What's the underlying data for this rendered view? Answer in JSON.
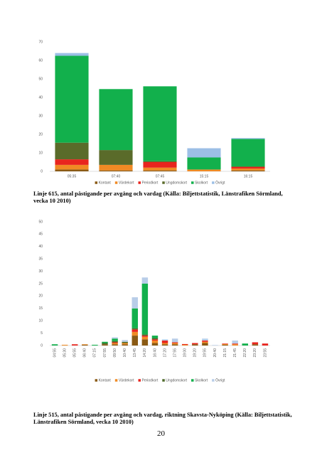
{
  "chart_data": [
    {
      "type": "stacked_bar",
      "categories": [
        "05:35",
        "07:40",
        "07:45",
        "15:15",
        "16:15"
      ],
      "series": [
        {
          "name": "Kontant",
          "color": "#8a5a14",
          "values": [
            1,
            0.5,
            0.5,
            0,
            0.5
          ]
        },
        {
          "name": "Värdekort",
          "color": "#f08a24",
          "values": [
            2.5,
            3,
            1.5,
            1,
            1
          ]
        },
        {
          "name": "Periodkort",
          "color": "#e8251e",
          "values": [
            3,
            0,
            3,
            0,
            1
          ]
        },
        {
          "name": "Ungdomskort",
          "color": "#5a6b2a",
          "values": [
            9,
            8,
            0.5,
            0,
            0
          ]
        },
        {
          "name": "Skolkort",
          "color": "#12b04c",
          "values": [
            47,
            33,
            40.5,
            6.5,
            15
          ]
        },
        {
          "name": "Övrigt",
          "color": "#9cbfe6",
          "values": [
            1.5,
            0,
            0,
            5,
            0.5
          ]
        }
      ],
      "ylim": [
        0,
        70
      ],
      "yticks": [
        0,
        10,
        20,
        30,
        40,
        50,
        60,
        70
      ],
      "grid": false
    },
    {
      "type": "stacked_bar",
      "categories": [
        "04:55",
        "05:30",
        "05:55",
        "06:40",
        "07:15",
        "07:55",
        "09:50",
        "10:40",
        "13:45",
        "14:20",
        "16:40",
        "17:20",
        "17:55",
        "19:00",
        "19:20",
        "19:55",
        "20:40",
        "21:15",
        "21:45",
        "22:20",
        "23:20",
        "23:55"
      ],
      "series": [
        {
          "name": "Kontant",
          "color": "#8a5a14",
          "values": [
            0,
            0,
            0,
            0.3,
            0,
            0.5,
            0.5,
            0.5,
            4,
            2.5,
            1,
            0.5,
            0.5,
            0,
            0.5,
            1,
            0,
            0.3,
            0,
            0,
            0.5,
            0
          ]
        },
        {
          "name": "Värdekort",
          "color": "#f08a24",
          "values": [
            0,
            0.3,
            0,
            0.2,
            0,
            0,
            0.5,
            0.5,
            1.5,
            1,
            1,
            0.5,
            0.5,
            0.3,
            0,
            0.5,
            0,
            0.3,
            0.5,
            0,
            0,
            0
          ]
        },
        {
          "name": "Periodkort",
          "color": "#e8251e",
          "values": [
            0,
            0,
            0.5,
            0,
            0,
            0,
            0.3,
            0,
            1,
            0.5,
            0.5,
            1,
            0.3,
            0.3,
            0.5,
            0.5,
            0,
            0.2,
            0.3,
            0,
            0.8,
            0.8
          ]
        },
        {
          "name": "Ungdomskort",
          "color": "#4e6b2a",
          "values": [
            0,
            0,
            0,
            0,
            0,
            0.5,
            0.5,
            0.5,
            0.5,
            0.5,
            0.5,
            0,
            0,
            0,
            0,
            0,
            0,
            0,
            0,
            0,
            0,
            0
          ]
        },
        {
          "name": "Skolkort",
          "color": "#12b04c",
          "values": [
            0.5,
            0,
            0,
            0,
            0.3,
            0.5,
            1,
            0,
            8,
            20.5,
            1,
            0,
            0,
            0,
            0,
            0,
            0,
            0,
            0,
            0.8,
            0,
            0
          ]
        },
        {
          "name": "Övrigt",
          "color": "#b8cde8",
          "values": [
            0,
            0,
            0,
            0,
            0,
            0,
            0.5,
            0.7,
            4.5,
            2.5,
            0,
            0.5,
            1.5,
            0,
            0,
            0.8,
            0.2,
            0,
            1.2,
            0,
            0,
            0
          ]
        }
      ],
      "ylim": [
        0,
        50
      ],
      "yticks": [
        0,
        5,
        10,
        15,
        20,
        25,
        30,
        35,
        40,
        45,
        50
      ],
      "grid": false
    }
  ],
  "captions": [
    "Linje 615, antal påstigande per avgång och vardag (Källa: Biljettstatistik, Länstrafiken Sörmland, vecka 10 2010)",
    "Linje 515, antal påstigande per avgång och vardag, riktning Skavsta-Nyköping (Källa: Biljettstatistik, Länstrafiken Sörmland, vecka 10 2010)"
  ],
  "page_number": "20"
}
